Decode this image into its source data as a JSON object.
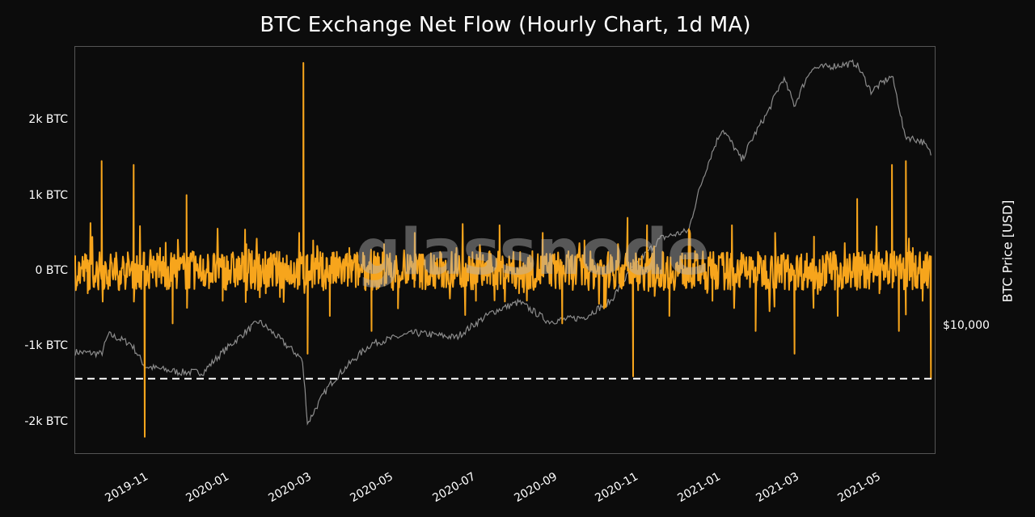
{
  "title": "BTC Exchange Net Flow (Hourly Chart, 1d MA)",
  "watermark": "glassnode",
  "colors": {
    "background": "#0c0c0c",
    "net_flow": "#f7a51c",
    "price": "#8c8c8c",
    "threshold": "#ffffff",
    "frame": "#555555"
  },
  "axes": {
    "left_ticks": [
      {
        "label": "2k BTC",
        "value": 2000
      },
      {
        "label": "1k BTC",
        "value": 1000
      },
      {
        "label": "0 BTC",
        "value": 0
      },
      {
        "label": "-1k BTC",
        "value": -1000
      },
      {
        "label": "-2k BTC",
        "value": -2000
      }
    ],
    "right_ticks": [
      {
        "label": "$10,000",
        "value": 10000
      }
    ],
    "right_label": "BTC Price [USD]",
    "x_ticks": [
      "2019-11",
      "2020-01",
      "2020-03",
      "2020-05",
      "2020-07",
      "2020-09",
      "2020-11",
      "2021-01",
      "2021-03",
      "2021-05"
    ]
  },
  "chart_data": {
    "type": "line",
    "title": "BTC Exchange Net Flow (Hourly Chart, 1d MA)",
    "xlabel": "",
    "ylabel": "",
    "y2label": "BTC Price [USD]",
    "ylim": [
      -2430,
      2970
    ],
    "y2_scale": "log",
    "x_range": [
      "2019-10-01",
      "2021-06-08"
    ],
    "x_tick_labels": [
      "2019-11",
      "2020-01",
      "2020-03",
      "2020-05",
      "2020-07",
      "2020-09",
      "2020-11",
      "2021-01",
      "2021-03",
      "2021-05"
    ],
    "grid": false,
    "legend": "none",
    "threshold_line": {
      "value": -1430,
      "style": "dashed",
      "color": "#ffffff"
    },
    "series": [
      {
        "name": "BTC Exchange Net Flow (1d MA)",
        "axis": "left",
        "unit": "BTC",
        "color": "#f7a51c",
        "x": [
          "2019-10-01",
          "2019-10-10",
          "2019-10-20",
          "2019-10-26",
          "2019-11-05",
          "2019-11-12",
          "2019-11-15",
          "2019-11-20",
          "2019-12-01",
          "2019-12-10",
          "2019-12-20",
          "2020-01-01",
          "2020-01-15",
          "2020-02-01",
          "2020-02-15",
          "2020-03-01",
          "2020-03-10",
          "2020-03-13",
          "2020-03-16",
          "2020-03-20",
          "2020-04-01",
          "2020-04-15",
          "2020-05-01",
          "2020-05-10",
          "2020-05-20",
          "2020-06-01",
          "2020-06-15",
          "2020-07-01",
          "2020-07-15",
          "2020-08-01",
          "2020-08-15",
          "2020-09-01",
          "2020-09-15",
          "2020-10-01",
          "2020-10-15",
          "2020-11-01",
          "2020-11-05",
          "2020-11-15",
          "2020-12-01",
          "2020-12-15",
          "2021-01-01",
          "2021-01-15",
          "2021-02-01",
          "2021-02-15",
          "2021-03-01",
          "2021-03-15",
          "2021-04-01",
          "2021-04-15",
          "2021-05-01",
          "2021-05-10",
          "2021-05-15",
          "2021-05-20",
          "2021-05-25",
          "2021-06-01",
          "2021-06-07"
        ],
        "values": [
          200,
          -300,
          1450,
          -200,
          100,
          1400,
          -150,
          -2200,
          300,
          -700,
          1000,
          150,
          -400,
          350,
          -300,
          200,
          500,
          2750,
          -1100,
          400,
          -600,
          300,
          -800,
          350,
          -500,
          500,
          -200,
          300,
          -400,
          600,
          -300,
          500,
          -700,
          400,
          -500,
          700,
          -1400,
          600,
          -600,
          550,
          -400,
          600,
          -800,
          500,
          -1100,
          450,
          -600,
          950,
          -300,
          1400,
          -800,
          1450,
          300,
          -400,
          -1430
        ]
      },
      {
        "name": "BTC Price",
        "axis": "right",
        "unit": "USD",
        "color": "#8c8c8c",
        "x": [
          "2019-10-01",
          "2019-10-20",
          "2019-10-25",
          "2019-11-10",
          "2019-11-20",
          "2019-12-15",
          "2020-01-01",
          "2020-02-10",
          "2020-03-01",
          "2020-03-12",
          "2020-03-16",
          "2020-04-01",
          "2020-05-01",
          "2020-06-01",
          "2020-07-01",
          "2020-07-27",
          "2020-08-15",
          "2020-09-05",
          "2020-10-01",
          "2020-10-20",
          "2020-11-05",
          "2020-11-25",
          "2020-12-15",
          "2021-01-08",
          "2021-01-22",
          "2021-02-10",
          "2021-02-21",
          "2021-03-01",
          "2021-03-13",
          "2021-04-14",
          "2021-04-25",
          "2021-05-10",
          "2021-05-19",
          "2021-06-01",
          "2021-06-07"
        ],
        "values": [
          8300,
          8200,
          9400,
          8800,
          7500,
          7200,
          7200,
          10300,
          8700,
          7900,
          5000,
          6600,
          8800,
          9500,
          9200,
          11000,
          11800,
          10300,
          10600,
          11900,
          15000,
          18500,
          19500,
          40000,
          32000,
          45000,
          57000,
          47000,
          61000,
          63500,
          52000,
          58000,
          38000,
          36500,
          33500
        ]
      }
    ]
  }
}
